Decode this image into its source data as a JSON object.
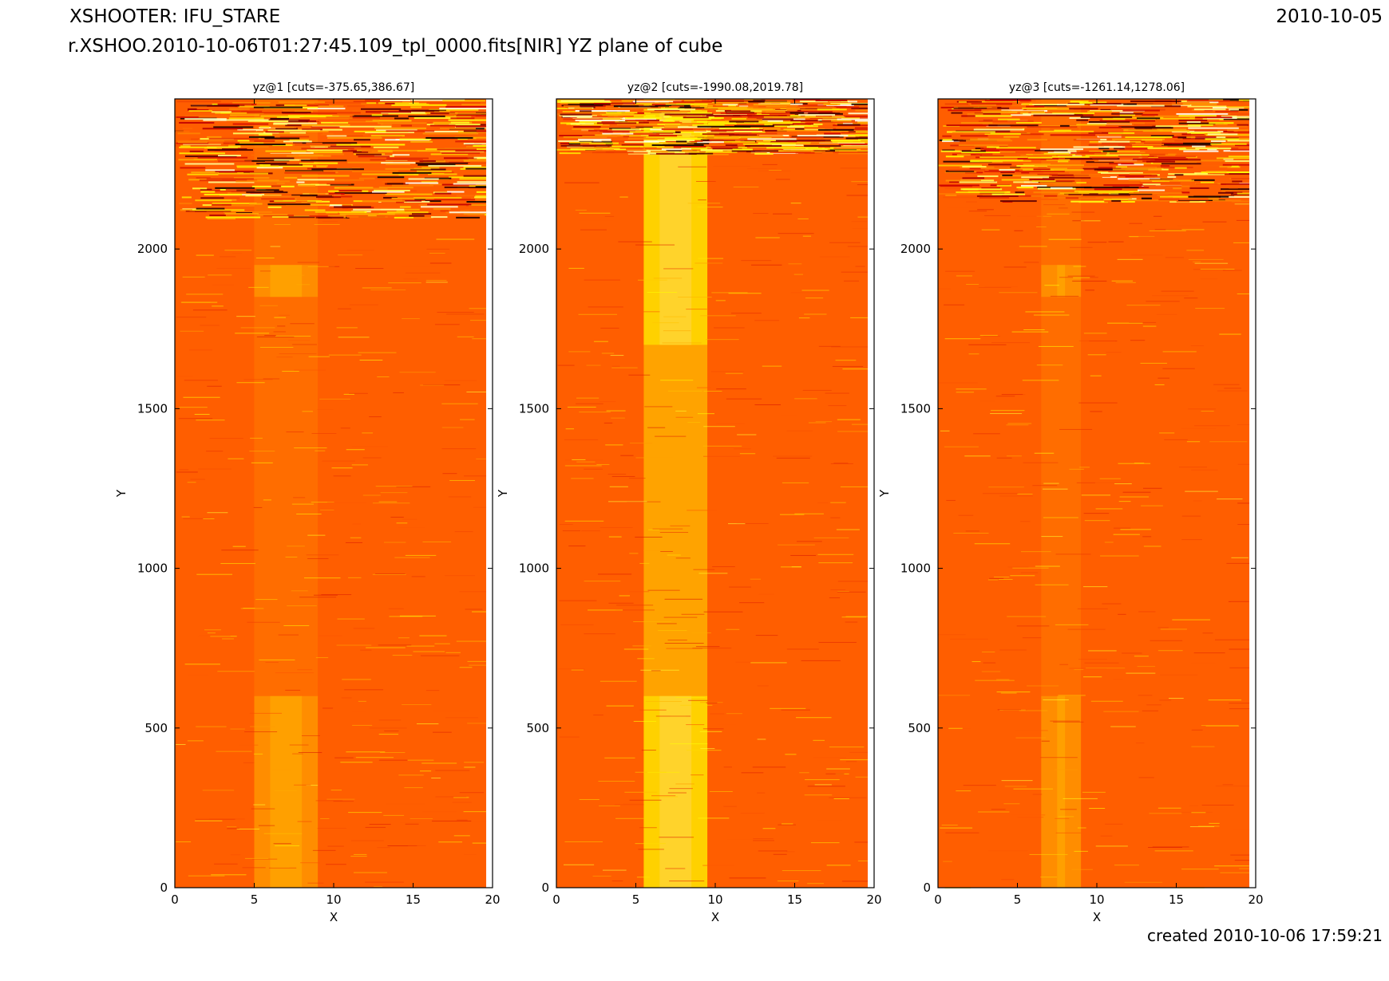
{
  "header": {
    "title": "XSHOOTER: IFU_STARE",
    "date": "2010-10-05",
    "subtitle": "r.XSHOO.2010-10-06T01:27:45.109_tpl_0000.fits[NIR] YZ plane of cube",
    "created": "created 2010-10-06 17:59:21"
  },
  "colors": {
    "base": "#ff5e00",
    "colormap": "hot",
    "colormap_stops": [
      "#000000",
      "#cc0000",
      "#ff5e00",
      "#ffaa00",
      "#ffff00",
      "#ffffff"
    ]
  },
  "chart_data": [
    {
      "type": "heatmap",
      "title": "yz@1 [cuts=-375.65,386.67]",
      "cuts": [
        -375.65,
        386.67
      ],
      "xlabel": "X",
      "ylabel": "Y",
      "xlim": [
        0,
        20
      ],
      "ylim": [
        0,
        2470
      ],
      "xticks": [
        "0",
        "5",
        "10",
        "15",
        "20"
      ],
      "yticks": [
        "0",
        "500",
        "1000",
        "1500",
        "2000"
      ],
      "bright_columns": [
        5,
        9
      ],
      "bright_y_ranges": [
        [
          0,
          600
        ],
        [
          1850,
          1950
        ]
      ],
      "noisy_top_from": 2100
    },
    {
      "type": "heatmap",
      "title": "yz@2 [cuts=-1990.08,2019.78]",
      "cuts": [
        -1990.08,
        2019.78
      ],
      "xlabel": "X",
      "ylabel": "Y",
      "xlim": [
        0,
        20
      ],
      "ylim": [
        0,
        2470
      ],
      "xticks": [
        "0",
        "5",
        "10",
        "15",
        "20"
      ],
      "yticks": [
        "0",
        "500",
        "1000",
        "1500",
        "2000"
      ],
      "bright_columns": [
        5.5,
        9.5
      ],
      "bright_y_ranges": [
        [
          0,
          600
        ],
        [
          1700,
          2470
        ]
      ],
      "noisy_top_from": 2300
    },
    {
      "type": "heatmap",
      "title": "yz@3 [cuts=-1261.14,1278.06]",
      "cuts": [
        -1261.14,
        1278.06
      ],
      "xlabel": "X",
      "ylabel": "Y",
      "xlim": [
        0,
        20
      ],
      "ylim": [
        0,
        2470
      ],
      "xticks": [
        "0",
        "5",
        "10",
        "15",
        "20"
      ],
      "yticks": [
        "0",
        "500",
        "1000",
        "1500",
        "2000"
      ],
      "bright_columns": [
        6.5,
        9
      ],
      "bright_y_ranges": [
        [
          0,
          600
        ],
        [
          1850,
          1950
        ]
      ],
      "noisy_top_from": 2150
    }
  ]
}
